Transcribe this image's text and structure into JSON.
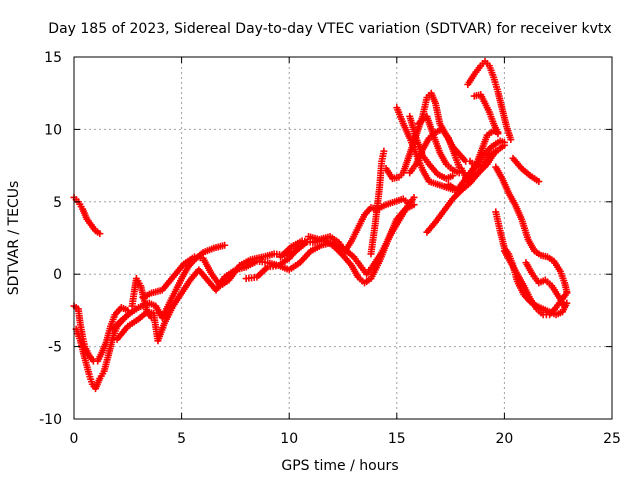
{
  "chart_data": {
    "type": "scatter",
    "title": "Day 185 of 2023, Sidereal Day-to-day VTEC variation (SDTVAR) for receiver kvtx",
    "xlabel": "GPS time / hours",
    "ylabel": "SDTVAR / TECUs",
    "xlim": [
      0,
      25
    ],
    "ylim": [
      -10,
      15
    ],
    "xticks": [
      0,
      5,
      10,
      15,
      20,
      25
    ],
    "yticks": [
      -10,
      -5,
      0,
      5,
      10,
      15
    ],
    "grid": true,
    "marker": "plus",
    "color": "#ff0000",
    "series": [
      {
        "values": [
          [
            0.0,
            5.3
          ],
          [
            0.2,
            5.0
          ],
          [
            0.4,
            4.5
          ],
          [
            0.6,
            3.8
          ],
          [
            0.8,
            3.4
          ],
          [
            1.0,
            3.0
          ],
          [
            1.2,
            2.8
          ]
        ]
      },
      {
        "values": [
          [
            0.0,
            -2.2
          ],
          [
            0.2,
            -2.4
          ],
          [
            0.3,
            -3.5
          ],
          [
            0.4,
            -4.3
          ],
          [
            0.5,
            -5.0
          ],
          [
            0.7,
            -5.6
          ],
          [
            0.9,
            -6.0
          ],
          [
            1.1,
            -6.0
          ],
          [
            1.3,
            -5.4
          ],
          [
            1.5,
            -4.7
          ],
          [
            1.7,
            -3.6
          ],
          [
            1.9,
            -2.8
          ],
          [
            2.2,
            -2.3
          ],
          [
            2.5,
            -2.5
          ]
        ]
      },
      {
        "values": [
          [
            0.1,
            -3.8
          ],
          [
            0.3,
            -4.6
          ],
          [
            0.5,
            -5.8
          ],
          [
            0.7,
            -6.9
          ],
          [
            0.85,
            -7.6
          ],
          [
            1.0,
            -7.9
          ],
          [
            1.2,
            -7.2
          ],
          [
            1.4,
            -6.7
          ],
          [
            1.6,
            -5.6
          ],
          [
            1.8,
            -4.4
          ],
          [
            2.0,
            -3.6
          ],
          [
            2.3,
            -3.1
          ],
          [
            2.5,
            -2.8
          ]
        ]
      },
      {
        "values": [
          [
            2.7,
            -2.2
          ],
          [
            2.8,
            -1.2
          ],
          [
            2.9,
            -0.3
          ],
          [
            3.1,
            -0.8
          ],
          [
            3.4,
            -2.6
          ],
          [
            3.6,
            -3.0
          ]
        ]
      },
      {
        "values": [
          [
            1.8,
            -3.8
          ],
          [
            2.2,
            -3.2
          ],
          [
            2.6,
            -2.7
          ],
          [
            3.0,
            -2.3
          ],
          [
            3.5,
            -2.0
          ],
          [
            3.8,
            -2.2
          ],
          [
            4.1,
            -3.0
          ],
          [
            4.4,
            -2.1
          ],
          [
            4.7,
            -1.2
          ],
          [
            5.0,
            -0.3
          ],
          [
            5.3,
            0.5
          ],
          [
            5.6,
            1.0
          ],
          [
            6.0,
            1.5
          ],
          [
            6.5,
            1.8
          ],
          [
            7.0,
            2.0
          ]
        ]
      },
      {
        "values": [
          [
            2.0,
            -4.5
          ],
          [
            2.5,
            -3.6
          ],
          [
            3.0,
            -3.1
          ],
          [
            3.4,
            -2.6
          ],
          [
            3.7,
            -2.7
          ],
          [
            3.9,
            -4.6
          ],
          [
            4.2,
            -3.4
          ],
          [
            4.6,
            -2.2
          ],
          [
            5.0,
            -1.3
          ],
          [
            5.4,
            -0.4
          ],
          [
            5.8,
            0.3
          ],
          [
            6.2,
            -0.4
          ],
          [
            6.6,
            -1.1
          ],
          [
            7.0,
            -0.2
          ],
          [
            7.5,
            0.3
          ],
          [
            8.0,
            0.5
          ],
          [
            8.5,
            0.9
          ],
          [
            9.0,
            0.8
          ],
          [
            9.5,
            0.6
          ],
          [
            10.0,
            1.1
          ],
          [
            10.4,
            1.8
          ]
        ]
      },
      {
        "values": [
          [
            3.2,
            -1.6
          ],
          [
            3.6,
            -1.3
          ],
          [
            4.1,
            -1.1
          ],
          [
            4.6,
            -0.2
          ],
          [
            5.1,
            0.7
          ],
          [
            5.6,
            1.2
          ],
          [
            6.0,
            1.1
          ],
          [
            6.4,
            0.0
          ],
          [
            6.8,
            -0.8
          ],
          [
            7.2,
            -0.4
          ],
          [
            7.7,
            0.6
          ],
          [
            8.2,
            1.0
          ],
          [
            8.8,
            1.2
          ],
          [
            9.3,
            1.4
          ],
          [
            9.8,
            1.3
          ],
          [
            10.3,
            1.6
          ],
          [
            10.8,
            2.2
          ]
        ]
      },
      {
        "values": [
          [
            8.0,
            -0.3
          ],
          [
            8.5,
            -0.2
          ],
          [
            9.0,
            0.5
          ],
          [
            9.5,
            0.6
          ],
          [
            10.0,
            0.3
          ],
          [
            10.5,
            0.8
          ],
          [
            11.0,
            1.6
          ],
          [
            11.5,
            2.0
          ],
          [
            12.0,
            2.2
          ],
          [
            12.5,
            1.8
          ],
          [
            13.0,
            1.2
          ],
          [
            13.3,
            0.6
          ],
          [
            13.6,
            0.0
          ],
          [
            13.9,
            0.6
          ],
          [
            14.3,
            1.5
          ],
          [
            14.7,
            2.7
          ],
          [
            15.1,
            3.7
          ],
          [
            15.5,
            4.7
          ],
          [
            15.8,
            5.3
          ]
        ]
      },
      {
        "values": [
          [
            9.6,
            1.2
          ],
          [
            10.1,
            1.9
          ],
          [
            10.6,
            2.3
          ],
          [
            11.1,
            2.2
          ],
          [
            11.6,
            2.4
          ],
          [
            12.1,
            1.9
          ],
          [
            12.5,
            1.3
          ],
          [
            12.9,
            0.6
          ],
          [
            13.2,
            -0.2
          ],
          [
            13.5,
            -0.6
          ],
          [
            13.8,
            -0.3
          ],
          [
            14.2,
            0.9
          ],
          [
            14.6,
            2.4
          ],
          [
            15.0,
            3.8
          ],
          [
            15.4,
            4.5
          ],
          [
            15.8,
            4.8
          ]
        ]
      },
      {
        "values": [
          [
            10.9,
            2.6
          ],
          [
            11.4,
            2.4
          ],
          [
            11.9,
            2.6
          ],
          [
            12.3,
            2.2
          ],
          [
            12.6,
            1.6
          ],
          [
            12.9,
            2.3
          ],
          [
            13.2,
            3.2
          ],
          [
            13.5,
            4.1
          ],
          [
            13.8,
            4.6
          ],
          [
            14.1,
            4.5
          ],
          [
            14.5,
            4.8
          ],
          [
            14.9,
            5.0
          ],
          [
            15.3,
            5.2
          ],
          [
            15.6,
            4.8
          ]
        ]
      },
      {
        "values": [
          [
            13.8,
            1.4
          ],
          [
            14.0,
            3.5
          ],
          [
            14.2,
            6.0
          ],
          [
            14.3,
            7.8
          ],
          [
            14.4,
            8.5
          ]
        ]
      },
      {
        "values": [
          [
            15.0,
            11.5
          ],
          [
            15.3,
            10.4
          ],
          [
            15.6,
            9.4
          ],
          [
            15.9,
            8.3
          ],
          [
            16.2,
            7.2
          ],
          [
            16.5,
            6.4
          ],
          [
            16.9,
            6.2
          ],
          [
            17.3,
            6.0
          ],
          [
            17.7,
            5.8
          ],
          [
            18.0,
            5.9
          ]
        ]
      },
      {
        "values": [
          [
            15.6,
            10.9
          ],
          [
            15.9,
            9.4
          ],
          [
            16.2,
            8.2
          ],
          [
            16.5,
            7.6
          ],
          [
            16.9,
            6.9
          ],
          [
            17.3,
            6.6
          ],
          [
            17.6,
            6.8
          ]
        ]
      },
      {
        "values": [
          [
            14.5,
            7.3
          ],
          [
            14.8,
            6.6
          ],
          [
            15.1,
            6.7
          ],
          [
            15.3,
            7.0
          ],
          [
            15.6,
            8.3
          ],
          [
            15.9,
            9.6
          ],
          [
            16.2,
            10.9
          ],
          [
            16.4,
            12.2
          ],
          [
            16.6,
            12.5
          ],
          [
            16.8,
            11.8
          ],
          [
            17.0,
            10.4
          ],
          [
            17.3,
            9.6
          ],
          [
            17.6,
            8.8
          ],
          [
            17.9,
            8.3
          ],
          [
            18.2,
            7.8
          ]
        ]
      },
      {
        "values": [
          [
            16.0,
            10.4
          ],
          [
            16.4,
            10.9
          ],
          [
            16.7,
            9.6
          ],
          [
            17.0,
            8.4
          ],
          [
            17.3,
            7.6
          ],
          [
            17.6,
            7.2
          ],
          [
            17.9,
            7.0
          ]
        ]
      },
      {
        "values": [
          [
            15.6,
            7.0
          ],
          [
            15.9,
            7.6
          ],
          [
            16.2,
            8.6
          ],
          [
            16.5,
            9.4
          ],
          [
            16.8,
            9.8
          ],
          [
            17.1,
            10.0
          ],
          [
            17.4,
            9.4
          ],
          [
            17.7,
            8.2
          ],
          [
            17.9,
            7.4
          ]
        ]
      },
      {
        "values": [
          [
            16.4,
            2.9
          ],
          [
            16.8,
            3.6
          ],
          [
            17.2,
            4.4
          ],
          [
            17.6,
            5.2
          ],
          [
            18.0,
            5.8
          ],
          [
            18.4,
            6.3
          ],
          [
            18.8,
            7.0
          ],
          [
            19.2,
            7.6
          ],
          [
            19.5,
            8.3
          ],
          [
            19.8,
            8.7
          ],
          [
            20.0,
            8.9
          ]
        ]
      },
      {
        "values": [
          [
            17.4,
            6.2
          ],
          [
            17.8,
            5.8
          ],
          [
            18.2,
            6.6
          ],
          [
            18.6,
            7.4
          ],
          [
            19.0,
            8.2
          ],
          [
            19.4,
            8.8
          ],
          [
            19.8,
            9.2
          ],
          [
            20.0,
            9.1
          ]
        ]
      },
      {
        "values": [
          [
            18.0,
            7.3
          ],
          [
            18.3,
            6.4
          ],
          [
            18.6,
            7.2
          ],
          [
            18.9,
            8.4
          ],
          [
            19.2,
            9.6
          ],
          [
            19.5,
            9.9
          ],
          [
            19.7,
            9.8
          ]
        ]
      },
      {
        "values": [
          [
            18.4,
            7.8
          ],
          [
            18.7,
            7.4
          ],
          [
            19.0,
            7.6
          ],
          [
            19.3,
            8.2
          ],
          [
            19.6,
            8.5
          ]
        ]
      },
      {
        "values": [
          [
            18.3,
            13.1
          ],
          [
            18.6,
            13.8
          ],
          [
            18.9,
            14.4
          ],
          [
            19.1,
            14.7
          ],
          [
            19.3,
            14.4
          ],
          [
            19.5,
            13.6
          ],
          [
            19.7,
            12.6
          ],
          [
            19.9,
            11.4
          ],
          [
            20.1,
            10.2
          ],
          [
            20.3,
            9.3
          ]
        ]
      },
      {
        "values": [
          [
            18.6,
            12.3
          ],
          [
            18.9,
            12.4
          ],
          [
            19.1,
            11.8
          ],
          [
            19.3,
            11.2
          ],
          [
            19.5,
            10.4
          ],
          [
            19.7,
            9.7
          ]
        ]
      },
      {
        "values": [
          [
            19.6,
            7.4
          ],
          [
            19.9,
            6.6
          ],
          [
            20.2,
            5.6
          ],
          [
            20.5,
            4.8
          ],
          [
            20.8,
            3.8
          ],
          [
            21.1,
            2.4
          ],
          [
            21.4,
            1.6
          ],
          [
            21.7,
            1.3
          ],
          [
            22.0,
            1.2
          ],
          [
            22.3,
            0.9
          ],
          [
            22.6,
            0.2
          ],
          [
            22.8,
            -0.6
          ],
          [
            22.9,
            -1.2
          ]
        ]
      },
      {
        "values": [
          [
            19.6,
            4.3
          ],
          [
            19.8,
            3.0
          ],
          [
            20.0,
            1.8
          ],
          [
            20.2,
            1.4
          ],
          [
            20.4,
            0.6
          ],
          [
            20.6,
            -0.5
          ],
          [
            20.9,
            -1.4
          ],
          [
            21.2,
            -1.9
          ],
          [
            21.5,
            -2.2
          ],
          [
            21.8,
            -2.4
          ],
          [
            22.1,
            -2.6
          ],
          [
            22.4,
            -2.8
          ],
          [
            22.7,
            -2.6
          ],
          [
            22.9,
            -2.0
          ]
        ]
      },
      {
        "values": [
          [
            20.0,
            1.6
          ],
          [
            20.3,
            0.8
          ],
          [
            20.6,
            0.0
          ],
          [
            20.9,
            -0.8
          ],
          [
            21.2,
            -1.7
          ],
          [
            21.5,
            -2.4
          ],
          [
            21.8,
            -2.8
          ],
          [
            22.1,
            -2.8
          ],
          [
            22.4,
            -2.3
          ],
          [
            22.7,
            -1.7
          ],
          [
            22.9,
            -1.3
          ]
        ]
      },
      {
        "values": [
          [
            20.4,
            8.0
          ],
          [
            20.8,
            7.3
          ],
          [
            21.2,
            6.8
          ],
          [
            21.6,
            6.4
          ]
        ]
      },
      {
        "values": [
          [
            21.0,
            0.8
          ],
          [
            21.3,
            0.0
          ],
          [
            21.6,
            -0.6
          ],
          [
            21.9,
            -0.4
          ],
          [
            22.2,
            -0.8
          ],
          [
            22.5,
            -1.5
          ],
          [
            22.8,
            -2.2
          ]
        ]
      }
    ]
  }
}
